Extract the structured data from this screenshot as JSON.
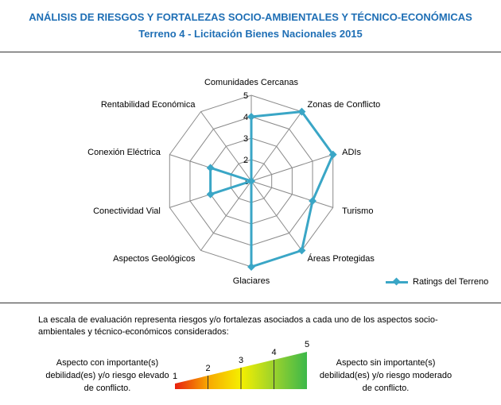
{
  "header": {
    "title": "ANÁLISIS DE RIESGOS Y FORTALEZAS SOCIO-AMBIENTALES Y TÉCNICO-ECONÓMICAS",
    "subtitle": "Terreno 4 - Licitación Bienes Nacionales 2015"
  },
  "chart_data": {
    "type": "radar",
    "categories": [
      "Comunidades Cercanas",
      "Zonas de Conflicto",
      "ADIs",
      "Turismo",
      "Áreas Protegidas",
      "Glaciares",
      "Aspectos Geológicos",
      "Conectividad Vial",
      "Conexión Eléctrica",
      "Rentabilidad Económica"
    ],
    "series": [
      {
        "name": "Ratings del Terreno",
        "values": [
          4,
          5,
          5,
          4,
          5,
          5,
          1,
          3,
          3,
          1
        ]
      }
    ],
    "rlim": [
      1,
      5
    ],
    "ticks": [
      "1",
      "2",
      "3",
      "4",
      "5"
    ],
    "grid": true,
    "legend_position": "bottom-right",
    "color": "#3aa6c6"
  },
  "legend": {
    "label": "Ratings del Terreno"
  },
  "scale": {
    "description": "La escala de evaluación representa riesgos y/o fortalezas asociados a cada uno de los aspectos socio-ambientales y técnico-económicos considerados:",
    "left_text": "Aspecto con importante(s) debilidad(es) y/o riesgo elevado de conflicto.",
    "right_text": "Aspecto sin importante(s) debilidad(es) y/o riesgo moderado de conflicto.",
    "labels": [
      "1",
      "2",
      "3",
      "4",
      "5"
    ],
    "colors": [
      "#e8200e",
      "#f7a800",
      "#f5ef00",
      "#9bd22c",
      "#3cb84a"
    ]
  }
}
